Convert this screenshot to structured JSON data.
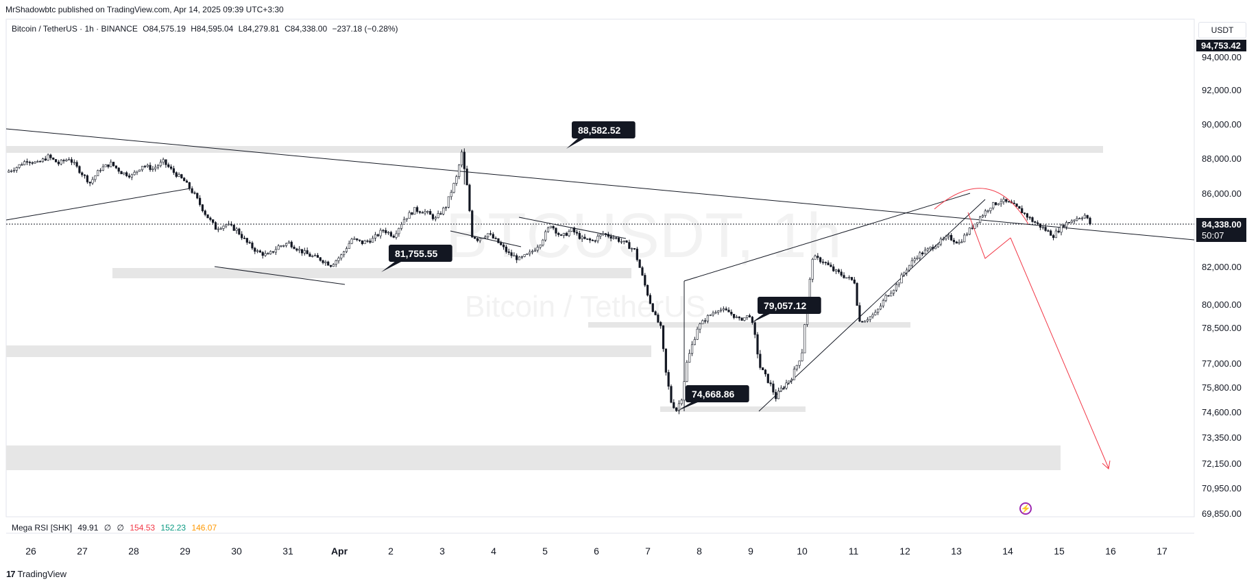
{
  "publisher": "MrShadowbtc published on TradingView.com, Apr 14, 2025 09:39 UTC+3:30",
  "symbol": {
    "name": "Bitcoin / TetherUS · 1h · BINANCE",
    "open": "O84,575.19",
    "high": "H84,595.04",
    "low": "L84,279.81",
    "close": "C84,338.00",
    "change": "−237.18 (−0.28%)"
  },
  "watermark": {
    "line1": "BTCUSDT, 1h",
    "line2": "Bitcoin / TetherUS"
  },
  "currency_label": "USDT",
  "price_axis": {
    "labels": [
      "94,000.00",
      "92,000.00",
      "90,000.00",
      "88,000.00",
      "86,000.00",
      "82,000.00",
      "80,000.00",
      "78,500.00",
      "77,000.00",
      "75,800.00",
      "74,600.00",
      "73,350.00",
      "72,150.00",
      "70,950.00",
      "69,850.00"
    ],
    "top_marker": "94,753.42",
    "current_price": "84,338.00",
    "countdown": "50:07"
  },
  "time_axis": {
    "labels": [
      "26",
      "27",
      "28",
      "29",
      "30",
      "31",
      "Apr",
      "2",
      "3",
      "4",
      "5",
      "6",
      "7",
      "8",
      "9",
      "10",
      "11",
      "12",
      "13",
      "14",
      "15",
      "16",
      "17"
    ]
  },
  "callouts": [
    "88,582.52",
    "81,755.55",
    "79,057.12",
    "74,668.86"
  ],
  "indicator": {
    "name": "Mega RSI [SHK]",
    "value": "49.91",
    "flag1": "∅",
    "flag2": "∅",
    "red": "154.53",
    "green": "152.23",
    "orange": "146.07",
    "colors": {
      "red": "#f23645",
      "green": "#089981",
      "orange": "#ff9800"
    }
  },
  "brand": "TradingView",
  "colors": {
    "candle": "#131722",
    "zone": "#e6e6e6",
    "projection": "#f23645"
  },
  "chart_data": {
    "type": "candlestick",
    "title": "Bitcoin / TetherUS · 1h · BINANCE",
    "xlabel": "",
    "ylabel": "USDT",
    "x_range": [
      "Mar 25 22:00",
      "Apr 17 12:00"
    ],
    "y_breakpoints": [
      {
        "price": 94000,
        "label": "94,000.00"
      },
      {
        "price": 92000,
        "label": "92,000.00"
      },
      {
        "price": 90000,
        "label": "90,000.00"
      },
      {
        "price": 88000,
        "label": "88,000.00"
      },
      {
        "price": 86000,
        "label": "86,000.00"
      },
      {
        "price": 82000,
        "label": "82,000.00"
      },
      {
        "price": 80000,
        "label": "80,000.00"
      },
      {
        "price": 78500,
        "label": "78,500.00"
      },
      {
        "price": 77000,
        "label": "77,000.00"
      },
      {
        "price": 75800,
        "label": "75,800.00"
      },
      {
        "price": 74600,
        "label": "74,600.00"
      },
      {
        "price": 73350,
        "label": "73,350.00"
      },
      {
        "price": 72150,
        "label": "72,150.00"
      },
      {
        "price": 70950,
        "label": "70,950.00"
      },
      {
        "price": 69850,
        "label": "69,850.00"
      }
    ],
    "price_path": [
      [
        0,
        87200
      ],
      [
        4,
        87500
      ],
      [
        8,
        87900
      ],
      [
        12,
        87700
      ],
      [
        16,
        88100
      ],
      [
        20,
        87700
      ],
      [
        24,
        88000
      ],
      [
        28,
        87300
      ],
      [
        32,
        86600
      ],
      [
        36,
        87400
      ],
      [
        40,
        87700
      ],
      [
        44,
        87200
      ],
      [
        48,
        87000
      ],
      [
        52,
        87600
      ],
      [
        56,
        87400
      ],
      [
        60,
        87800
      ],
      [
        64,
        87200
      ],
      [
        68,
        86700
      ],
      [
        72,
        85900
      ],
      [
        76,
        84900
      ],
      [
        80,
        84100
      ],
      [
        84,
        84300
      ],
      [
        88,
        84000
      ],
      [
        92,
        83300
      ],
      [
        96,
        82800
      ],
      [
        100,
        82600
      ],
      [
        104,
        83100
      ],
      [
        108,
        83300
      ],
      [
        112,
        82900
      ],
      [
        116,
        82600
      ],
      [
        120,
        82400
      ],
      [
        124,
        82100
      ],
      [
        128,
        82600
      ],
      [
        132,
        83500
      ],
      [
        136,
        83300
      ],
      [
        140,
        83500
      ],
      [
        144,
        84000
      ],
      [
        148,
        83700
      ],
      [
        152,
        84600
      ],
      [
        156,
        85100
      ],
      [
        160,
        85000
      ],
      [
        164,
        84600
      ],
      [
        168,
        85300
      ],
      [
        172,
        86900
      ],
      [
        174,
        88300
      ],
      [
        176,
        86400
      ],
      [
        178,
        83700
      ],
      [
        180,
        83500
      ],
      [
        184,
        83800
      ],
      [
        188,
        83300
      ],
      [
        192,
        82700
      ],
      [
        196,
        82400
      ],
      [
        200,
        82700
      ],
      [
        204,
        83300
      ],
      [
        208,
        84300
      ],
      [
        212,
        83600
      ],
      [
        216,
        84000
      ],
      [
        220,
        83500
      ],
      [
        224,
        83400
      ],
      [
        228,
        83800
      ],
      [
        232,
        83600
      ],
      [
        236,
        83300
      ],
      [
        240,
        82900
      ],
      [
        244,
        81000
      ],
      [
        248,
        79200
      ],
      [
        250,
        78500
      ],
      [
        252,
        76500
      ],
      [
        254,
        75100
      ],
      [
        256,
        74700
      ],
      [
        258,
        75300
      ],
      [
        260,
        77000
      ],
      [
        264,
        78500
      ],
      [
        268,
        79200
      ],
      [
        272,
        79700
      ],
      [
        276,
        79500
      ],
      [
        280,
        79000
      ],
      [
        284,
        79300
      ],
      [
        286,
        78100
      ],
      [
        288,
        76800
      ],
      [
        292,
        75900
      ],
      [
        294,
        75300
      ],
      [
        296,
        75700
      ],
      [
        300,
        76300
      ],
      [
        304,
        77500
      ],
      [
        306,
        80000
      ],
      [
        308,
        82500
      ],
      [
        312,
        82300
      ],
      [
        316,
        81800
      ],
      [
        320,
        81500
      ],
      [
        324,
        81200
      ],
      [
        326,
        78900
      ],
      [
        328,
        79000
      ],
      [
        332,
        79400
      ],
      [
        336,
        80400
      ],
      [
        340,
        81000
      ],
      [
        344,
        81900
      ],
      [
        348,
        82600
      ],
      [
        352,
        82900
      ],
      [
        356,
        83300
      ],
      [
        360,
        83600
      ],
      [
        364,
        83300
      ],
      [
        368,
        84000
      ],
      [
        372,
        84700
      ],
      [
        376,
        85300
      ],
      [
        380,
        85600
      ],
      [
        384,
        85400
      ],
      [
        388,
        85000
      ],
      [
        392,
        84500
      ],
      [
        396,
        84100
      ],
      [
        400,
        83700
      ],
      [
        404,
        84300
      ],
      [
        408,
        84600
      ],
      [
        412,
        84800
      ],
      [
        414,
        84338
      ]
    ],
    "current_price": 84338.0,
    "marked_levels": [
      88582.52,
      81755.55,
      79057.12,
      74668.86
    ],
    "projection": "decline toward ~72,150"
  }
}
